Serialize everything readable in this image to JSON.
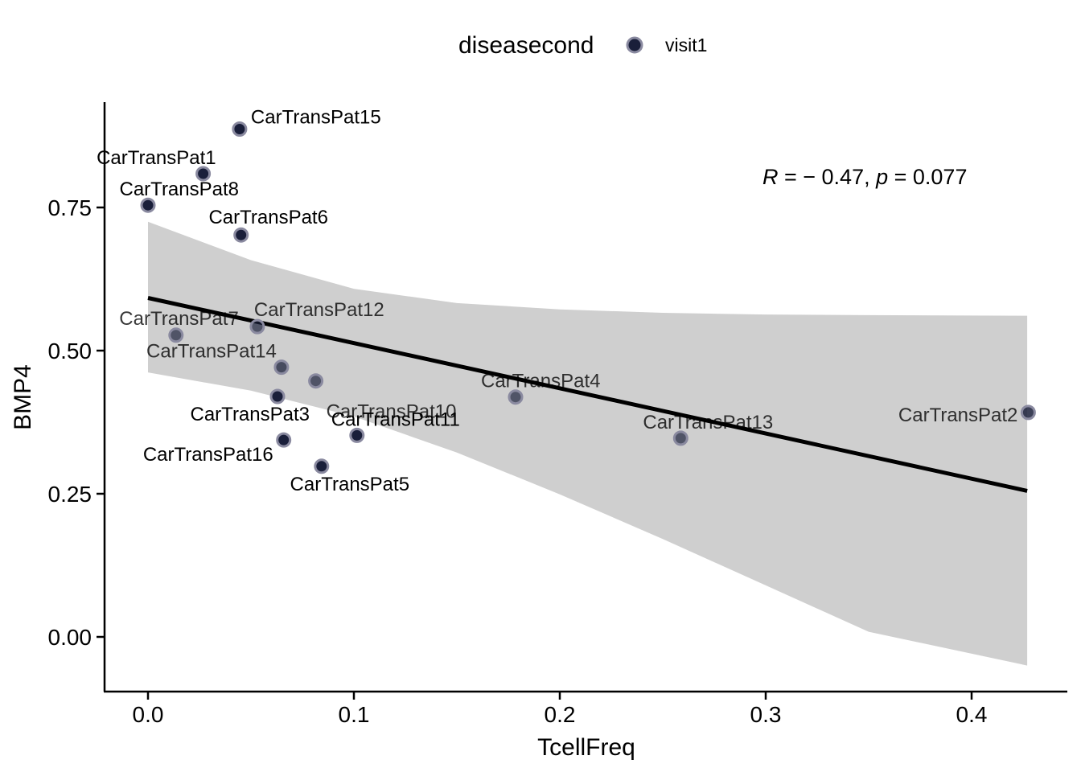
{
  "chart_data": {
    "type": "scatter",
    "xlabel": "TcellFreq",
    "ylabel": "BMP4",
    "xlim": [
      -0.021,
      0.448
    ],
    "ylim": [
      -0.095,
      0.93
    ],
    "x_ticks": [
      0.0,
      0.1,
      0.2,
      0.3,
      0.4
    ],
    "x_tick_labels": [
      "0.0",
      "0.1",
      "0.2",
      "0.3",
      "0.4"
    ],
    "y_ticks": [
      0.0,
      0.25,
      0.5,
      0.75
    ],
    "y_tick_labels": [
      "0.00",
      "0.25",
      "0.50",
      "0.75"
    ],
    "legend": {
      "title": "diseasecond",
      "position": "top",
      "entries": [
        {
          "label": "visit1",
          "color": "#1a1f3a"
        }
      ]
    },
    "annotation": {
      "R_symbol": "R",
      "R_value": " = − 0.47, ",
      "p_symbol": "p",
      "p_value": " = 0.077"
    },
    "regression": {
      "x_range": [
        0.0,
        0.427
      ],
      "y_at_start": 0.592,
      "y_at_end": 0.255,
      "ci_lower": [
        [
          0.0,
          0.462
        ],
        [
          0.05,
          0.43
        ],
        [
          0.1,
          0.385
        ],
        [
          0.15,
          0.322
        ],
        [
          0.2,
          0.249
        ],
        [
          0.25,
          0.171
        ],
        [
          0.3,
          0.09
        ],
        [
          0.35,
          0.009
        ],
        [
          0.427,
          -0.05
        ]
      ],
      "ci_upper": [
        [
          0.0,
          0.725
        ],
        [
          0.05,
          0.658
        ],
        [
          0.1,
          0.608
        ],
        [
          0.15,
          0.583
        ],
        [
          0.2,
          0.572
        ],
        [
          0.25,
          0.566
        ],
        [
          0.3,
          0.563
        ],
        [
          0.35,
          0.562
        ],
        [
          0.427,
          0.561
        ]
      ],
      "colors": {
        "line": "#000000",
        "band": "#cfcfcf"
      }
    },
    "points": [
      {
        "label": "CarTransPat15",
        "x": 0.0445,
        "y": 0.887,
        "alpha": 1.0
      },
      {
        "label": "CarTransPat1",
        "x": 0.0268,
        "y": 0.809,
        "alpha": 1.0
      },
      {
        "label": "CarTransPat8",
        "x": 0.0,
        "y": 0.754,
        "alpha": 1.0
      },
      {
        "label": "CarTransPat6",
        "x": 0.0452,
        "y": 0.702,
        "alpha": 1.0
      },
      {
        "label": "CarTransPat7",
        "x": 0.0136,
        "y": 0.527,
        "alpha": 0.7
      },
      {
        "label": "CarTransPat12",
        "x": 0.0531,
        "y": 0.542,
        "alpha": 0.7
      },
      {
        "label": "CarTransPat14",
        "x": 0.0648,
        "y": 0.471,
        "alpha": 0.75
      },
      {
        "label": "CarTransPat10",
        "x": 0.0815,
        "y": 0.447,
        "alpha": 0.7
      },
      {
        "label": "CarTransPat3",
        "x": 0.0629,
        "y": 0.42,
        "alpha": 1.0
      },
      {
        "label": "CarTransPat4",
        "x": 0.1785,
        "y": 0.419,
        "alpha": 0.7
      },
      {
        "label": "CarTransPat2",
        "x": 0.4275,
        "y": 0.392,
        "alpha": 0.85
      },
      {
        "label": "CarTransPat11",
        "x": 0.1015,
        "y": 0.352,
        "alpha": 1.0
      },
      {
        "label": "CarTransPat16",
        "x": 0.0659,
        "y": 0.344,
        "alpha": 1.0
      },
      {
        "label": "CarTransPat13",
        "x": 0.2587,
        "y": 0.347,
        "alpha": 0.7
      },
      {
        "label": "CarTransPat5",
        "x": 0.0843,
        "y": 0.298,
        "alpha": 1.0
      }
    ],
    "colors": {
      "point": "#1a1f3a",
      "point_edge": "#8a8aa0",
      "axis": "#000000",
      "text": "#000000"
    }
  }
}
